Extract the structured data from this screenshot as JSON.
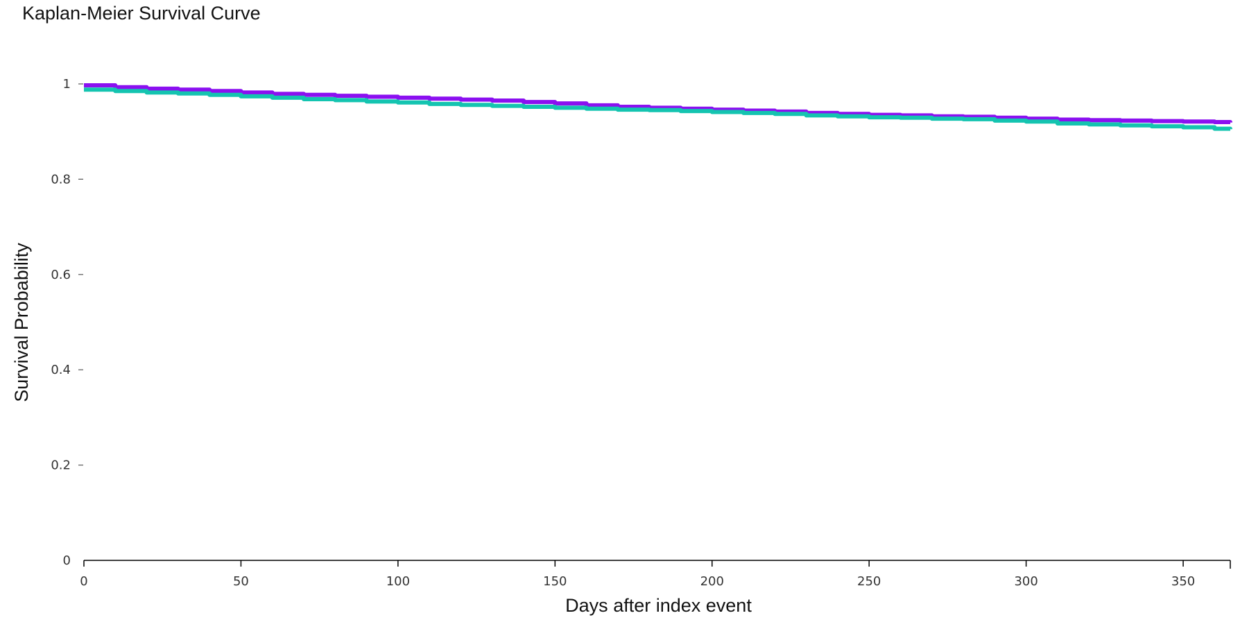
{
  "chart_data": {
    "type": "line",
    "title": "Kaplan-Meier Survival Curve",
    "xlabel": "Days after index event",
    "ylabel": "Survival Probability",
    "xlim": [
      0,
      365
    ],
    "ylim": [
      0,
      1
    ],
    "x_ticks": [
      0,
      50,
      100,
      150,
      200,
      250,
      300,
      350
    ],
    "y_ticks": [
      0,
      0.2,
      0.4,
      0.6,
      0.8,
      1
    ],
    "y_tick_labels": [
      "0",
      "0.2",
      "0.4",
      "0.6",
      "0.8",
      "1"
    ],
    "grid": false,
    "legend": "none",
    "series": [
      {
        "color": "#8b10f0",
        "step": true,
        "x": [
          0,
          10,
          20,
          30,
          40,
          50,
          60,
          70,
          80,
          90,
          100,
          110,
          120,
          130,
          140,
          150,
          160,
          170,
          180,
          190,
          200,
          210,
          220,
          230,
          240,
          250,
          260,
          270,
          280,
          290,
          300,
          310,
          320,
          330,
          340,
          350,
          360,
          365
        ],
        "values": [
          0.997,
          0.993,
          0.99,
          0.988,
          0.985,
          0.982,
          0.979,
          0.977,
          0.975,
          0.973,
          0.971,
          0.969,
          0.967,
          0.965,
          0.962,
          0.959,
          0.955,
          0.952,
          0.95,
          0.948,
          0.946,
          0.944,
          0.942,
          0.939,
          0.937,
          0.935,
          0.934,
          0.932,
          0.931,
          0.929,
          0.927,
          0.925,
          0.924,
          0.923,
          0.922,
          0.921,
          0.92,
          0.919
        ]
      },
      {
        "color": "#14c4b0",
        "step": true,
        "x": [
          0,
          10,
          20,
          30,
          40,
          50,
          60,
          70,
          80,
          90,
          100,
          110,
          120,
          130,
          140,
          150,
          160,
          170,
          180,
          190,
          200,
          210,
          220,
          230,
          240,
          250,
          260,
          270,
          280,
          290,
          300,
          310,
          320,
          330,
          340,
          350,
          360,
          365
        ],
        "values": [
          0.988,
          0.985,
          0.982,
          0.98,
          0.977,
          0.974,
          0.971,
          0.968,
          0.966,
          0.963,
          0.961,
          0.958,
          0.956,
          0.954,
          0.952,
          0.95,
          0.948,
          0.946,
          0.945,
          0.943,
          0.941,
          0.939,
          0.937,
          0.934,
          0.932,
          0.93,
          0.929,
          0.927,
          0.926,
          0.923,
          0.921,
          0.917,
          0.915,
          0.913,
          0.911,
          0.909,
          0.906,
          0.905
        ]
      }
    ]
  }
}
